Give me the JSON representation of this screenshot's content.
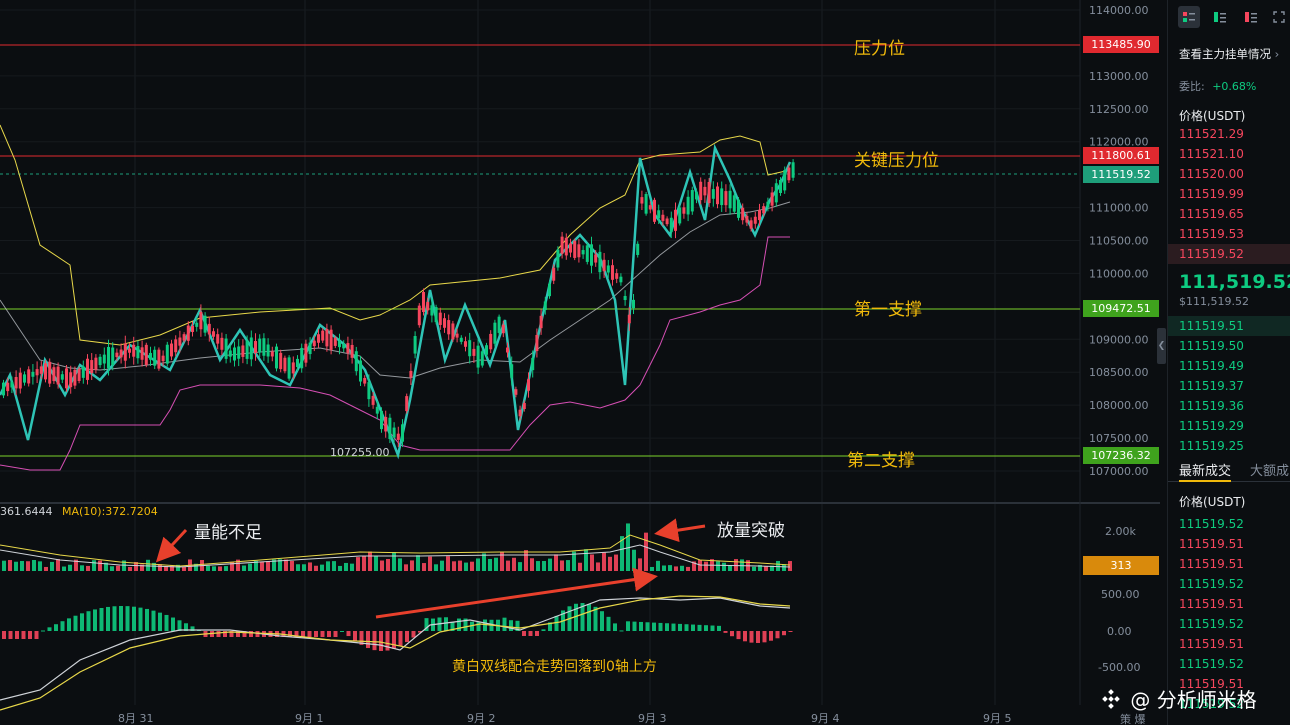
{
  "price_axis": {
    "ticks": [
      "114000.00",
      "113000.00",
      "112500.00",
      "112000.00",
      "111000.00",
      "110500.00",
      "110000.00",
      "109000.00",
      "108500.00",
      "108000.00",
      "107500.00",
      "107000.00"
    ],
    "tick_values": [
      114000,
      113000,
      112500,
      112000,
      111000,
      110500,
      110000,
      109000,
      108500,
      108000,
      107500,
      107000
    ]
  },
  "volume_axis": {
    "ticks": [
      "2.00k"
    ]
  },
  "macd_axis": {
    "ticks": [
      "500.00",
      "0.00",
      "-500.00"
    ]
  },
  "time_axis": {
    "labels": [
      "8月 31",
      "9月 1",
      "9月 2",
      "9月 3",
      "9月 4",
      "9月 5"
    ],
    "corner": "策 爆"
  },
  "price_tags": {
    "resistance": {
      "text": "113485.90",
      "color": "#e0292f"
    },
    "key_resistance": {
      "text": "111800.61",
      "color": "#e0292f"
    },
    "last_price": {
      "text": "111519.52",
      "color": "#1e9e7a"
    },
    "support1": {
      "text": "109472.51",
      "color": "#3fa31d"
    },
    "support2": {
      "text": "107236.32",
      "color": "#3fa31d"
    },
    "volume_value": {
      "text": "313",
      "color": "#d98a0c"
    }
  },
  "annotations": {
    "resistance": "压力位",
    "key_resistance": "关键压力位",
    "support1": "第一支撑",
    "support2": "第二支撑",
    "low_label": "107255.00",
    "volume_weak": "量能不足",
    "volume_break": "放量突破",
    "macd_note": "黄白双线配合走势回落到0轴上方"
  },
  "volume_legend": {
    "value": "361.6444",
    "ma": "MA(10):372.7204"
  },
  "right_panel": {
    "view_orders": "查看主力挂单情况",
    "ratio_label": "委比:",
    "ratio_value": "+0.68%",
    "price_header": "价格(USDT)",
    "asks": [
      "111521.29",
      "111521.10",
      "111520.00",
      "111519.99",
      "111519.65",
      "111519.53",
      "111519.52"
    ],
    "last_price": "111,519.52",
    "last_price_usd": "$111,519.52",
    "bids": [
      "111519.51",
      "111519.50",
      "111519.49",
      "111519.37",
      "111519.36",
      "111519.29",
      "111519.25"
    ],
    "tab_trades": "最新成交",
    "tab_large": "大额成",
    "trades_price_header": "价格(USDT)",
    "trades": [
      {
        "price": "111519.52",
        "side": "buy"
      },
      {
        "price": "111519.51",
        "side": "sell"
      },
      {
        "price": "111519.51",
        "side": "sell"
      },
      {
        "price": "111519.52",
        "side": "buy"
      },
      {
        "price": "111519.51",
        "side": "sell"
      },
      {
        "price": "111519.52",
        "side": "buy"
      },
      {
        "price": "111519.51",
        "side": "sell"
      },
      {
        "price": "111519.52",
        "side": "buy"
      },
      {
        "price": "111519.51",
        "side": "sell"
      },
      {
        "price": "111519.52",
        "side": "buy"
      }
    ]
  },
  "watermark": "@ 分析师米格",
  "colors": {
    "up": "#0ecb81",
    "down": "#f6465d",
    "zigzag": "#2ec4b6",
    "boll_upper": "#e8d84a",
    "boll_lower": "#d64fb4",
    "boll_mid": "#cfd3d8",
    "accent": "#f0b90b"
  }
}
